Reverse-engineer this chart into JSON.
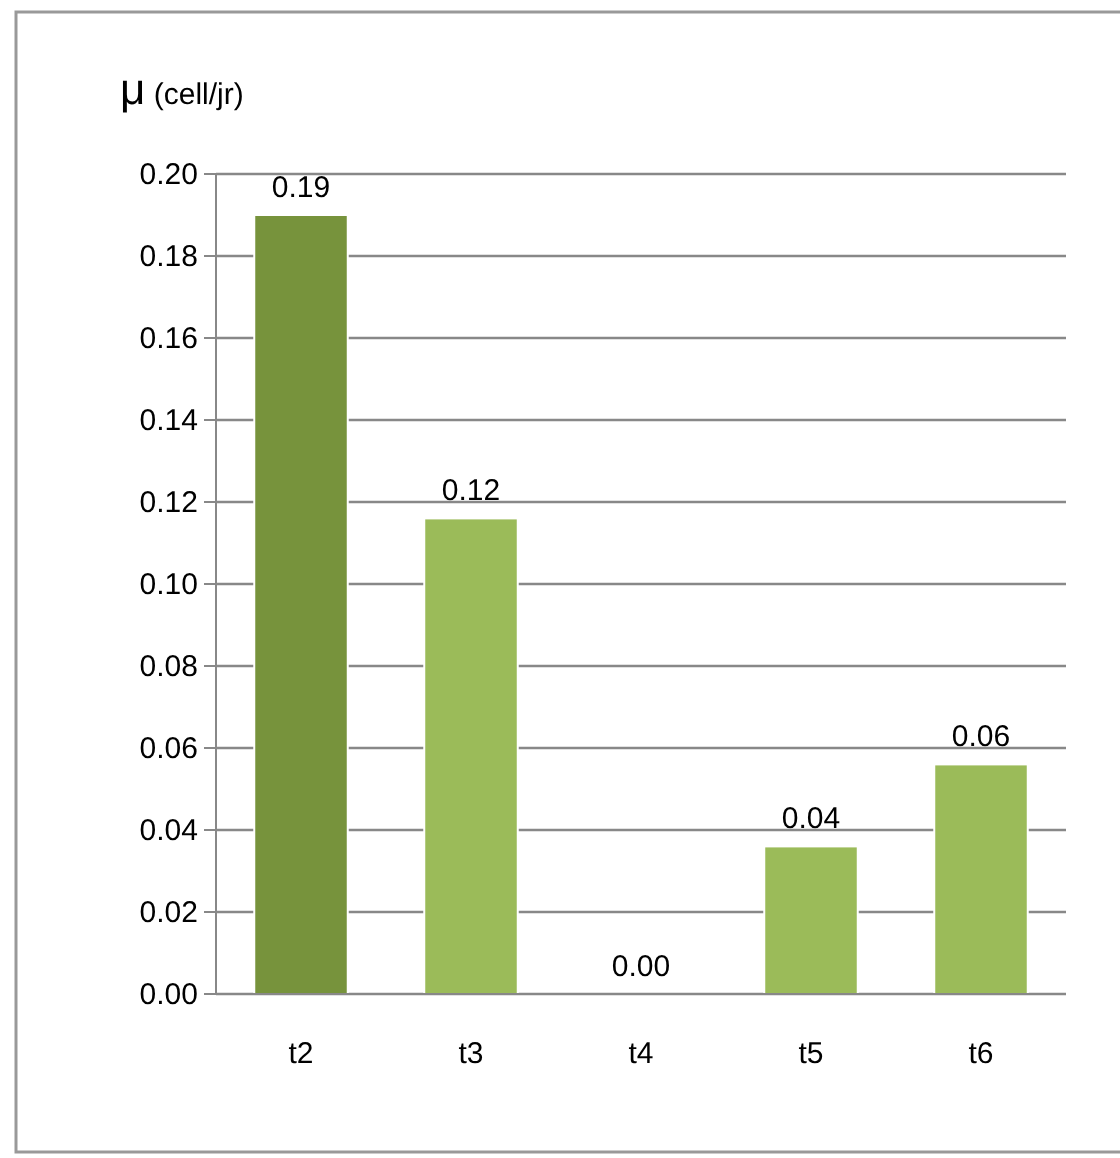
{
  "chart_data": {
    "type": "bar",
    "ylabel": "μ (cell/jr)",
    "categories": [
      "t2",
      "t3",
      "t4",
      "t5",
      "t6"
    ],
    "values": [
      0.19,
      0.116,
      0,
      0.036,
      0.056
    ],
    "colors": [
      "#77933c",
      "#9bbb59",
      "#9bbb59",
      "#9bbb59",
      "#9bbb59"
    ],
    "value_labels": [
      "0.19",
      "0.12",
      "0.00",
      "0.04",
      "0.06"
    ],
    "ylim": [
      0,
      0.2
    ],
    "yticks": [
      {
        "value": 0,
        "label": "0.00"
      },
      {
        "value": 0.02,
        "label": "0.02"
      },
      {
        "value": 0.04,
        "label": "0.04"
      },
      {
        "value": 0.06,
        "label": "0.06"
      },
      {
        "value": 0.08,
        "label": "0.08"
      },
      {
        "value": 0.1,
        "label": "0.10"
      },
      {
        "value": 0.12,
        "label": "0.12"
      },
      {
        "value": 0.14,
        "label": "0.14"
      },
      {
        "value": 0.16,
        "label": "0.16"
      },
      {
        "value": 0.18,
        "label": "0.18"
      },
      {
        "value": 0.2,
        "label": "0.20"
      }
    ],
    "grid": "y"
  }
}
